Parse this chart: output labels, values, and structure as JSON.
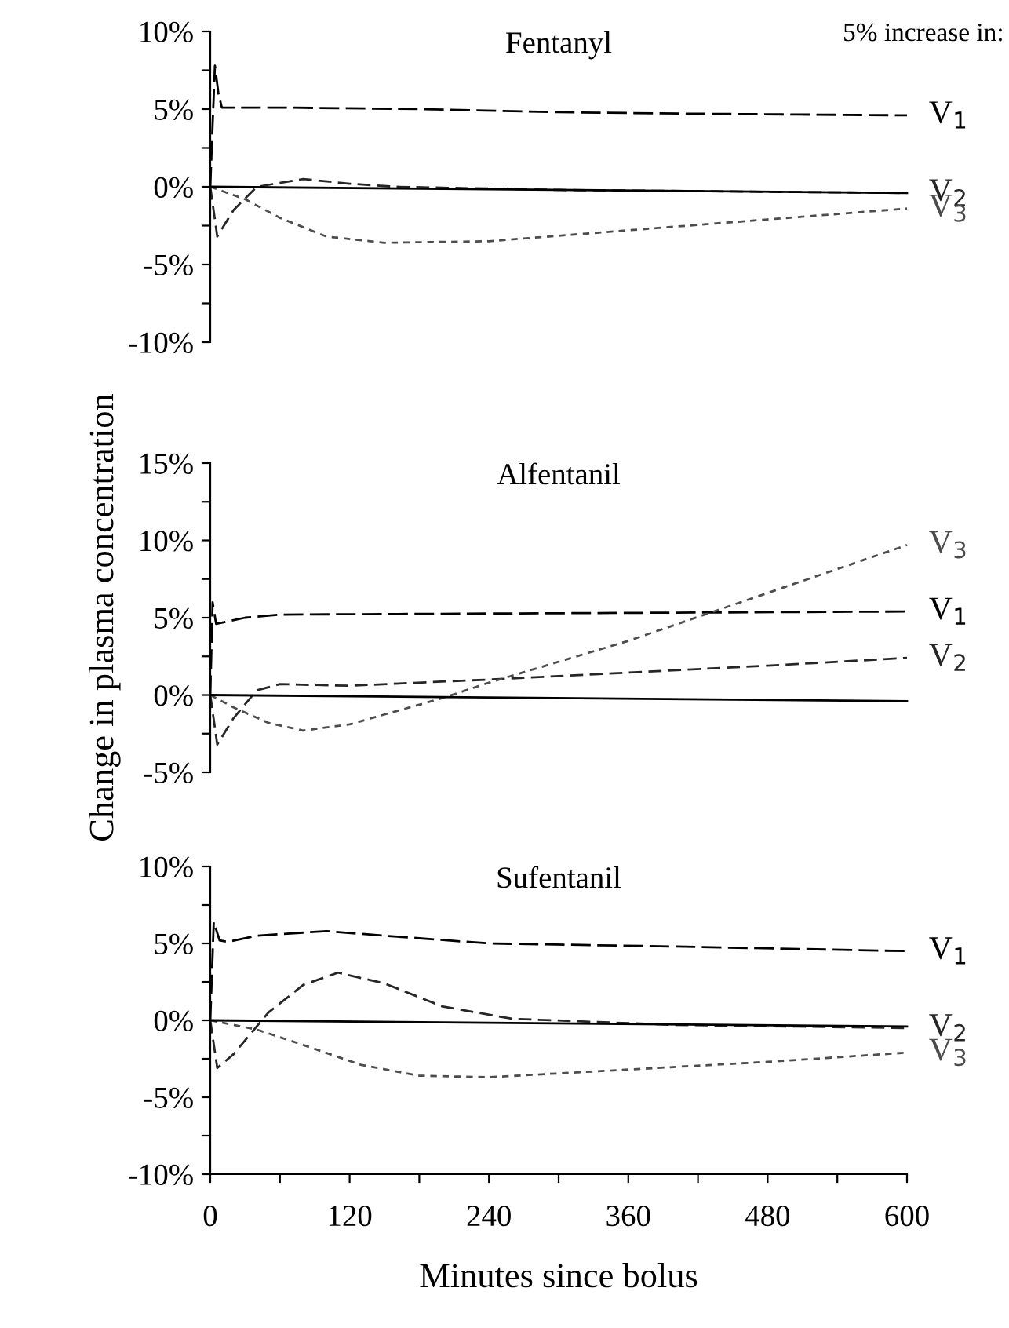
{
  "chart_data": [
    {
      "type": "line",
      "title": "Fentanyl",
      "annotations": [
        "5% increase in:"
      ],
      "xlim": [
        0,
        600
      ],
      "ylim": [
        -10,
        10
      ],
      "tick_labels": "y",
      "grid": false,
      "legend": false,
      "marker": "none",
      "yticks": [
        {
          "value": -10,
          "label": "-10%"
        },
        {
          "value": -7.5,
          "label": null
        },
        {
          "value": -5,
          "label": "-5%"
        },
        {
          "value": -2.5,
          "label": null
        },
        {
          "value": 0,
          "label": "0%"
        },
        {
          "value": 2.5,
          "label": null
        },
        {
          "value": 5,
          "label": "5%"
        },
        {
          "value": 7.5,
          "label": null
        },
        {
          "value": 10,
          "label": "10%"
        }
      ],
      "series": [
        {
          "name": "V$_{1}$",
          "color": "#000000",
          "line_style": "dashed",
          "x": [
            0,
            2,
            4,
            7,
            10,
            60,
            180,
            300,
            420,
            600
          ],
          "values": [
            0,
            4,
            7.8,
            6,
            5.1,
            5.1,
            5.0,
            4.8,
            4.7,
            4.6
          ]
        },
        {
          "name": "V$_{2}$",
          "color": "#262626",
          "line_style": "dashed",
          "x": [
            0,
            6,
            20,
            40,
            80,
            120,
            160,
            300,
            600
          ],
          "values": [
            0,
            -3.2,
            -1.5,
            0,
            0.5,
            0.2,
            0,
            -0.2,
            -0.4
          ]
        },
        {
          "name": "V$_{3}$",
          "color": "#4d4d4d",
          "line_style": "dashed",
          "x": [
            0,
            30,
            60,
            100,
            150,
            240,
            360,
            480,
            600
          ],
          "values": [
            0,
            -0.8,
            -2.0,
            -3.2,
            -3.6,
            -3.5,
            -2.8,
            -2.1,
            -1.4
          ]
        },
        {
          "color": "#000000",
          "line_style": "solid",
          "x": [
            0,
            600
          ],
          "values": [
            0,
            -0.4
          ]
        }
      ]
    },
    {
      "type": "line",
      "title": "Alfentanil",
      "ylabel": "Change in plasma concentration",
      "xlim": [
        0,
        600
      ],
      "ylim": [
        -5,
        15
      ],
      "tick_labels": "y",
      "grid": false,
      "legend": false,
      "marker": "none",
      "yticks": [
        {
          "value": -5,
          "label": "-5%"
        },
        {
          "value": -2.5,
          "label": null
        },
        {
          "value": 0,
          "label": "0%"
        },
        {
          "value": 2.5,
          "label": null
        },
        {
          "value": 5,
          "label": "5%"
        },
        {
          "value": 7.5,
          "label": null
        },
        {
          "value": 10,
          "label": "10%"
        },
        {
          "value": 12.5,
          "label": null
        },
        {
          "value": 15,
          "label": "15%"
        }
      ],
      "series": [
        {
          "name": "V$_{1}$",
          "color": "#000000",
          "line_style": "dashed",
          "x": [
            0,
            2,
            5,
            30,
            60,
            600
          ],
          "values": [
            0,
            6,
            4.6,
            5.0,
            5.2,
            5.4
          ]
        },
        {
          "name": "V$_{2}$",
          "color": "#262626",
          "line_style": "dashed",
          "x": [
            0,
            6,
            20,
            40,
            60,
            120,
            240,
            480,
            600
          ],
          "values": [
            0,
            -3.2,
            -1.5,
            0.3,
            0.7,
            0.6,
            1.0,
            1.9,
            2.4
          ]
        },
        {
          "name": "V$_{3}$",
          "color": "#4d4d4d",
          "line_style": "dashed",
          "x": [
            0,
            20,
            50,
            80,
            120,
            200,
            240,
            360,
            480,
            600
          ],
          "values": [
            0,
            -0.8,
            -1.8,
            -2.3,
            -1.9,
            -0.2,
            0.8,
            3.5,
            6.6,
            9.7
          ]
        },
        {
          "color": "#000000",
          "line_style": "solid",
          "x": [
            0,
            600
          ],
          "values": [
            0,
            -0.4
          ]
        }
      ]
    },
    {
      "type": "line",
      "title": "Sufentanil",
      "xlabel": "Minutes since bolus",
      "xlim": [
        0,
        600
      ],
      "ylim": [
        -10,
        10
      ],
      "grid": false,
      "legend": false,
      "marker": "none",
      "xticks": [
        0,
        {
          "value": 60,
          "label": null
        },
        120,
        {
          "value": 180,
          "label": null
        },
        240,
        {
          "value": 300,
          "label": null
        },
        360,
        {
          "value": 420,
          "label": null
        },
        480,
        {
          "value": 540,
          "label": null
        },
        600
      ],
      "yticks": [
        {
          "value": -10,
          "label": "-10%"
        },
        {
          "value": -7.5,
          "label": null
        },
        {
          "value": -5,
          "label": "-5%"
        },
        {
          "value": -2.5,
          "label": null
        },
        {
          "value": 0,
          "label": "0%"
        },
        {
          "value": 2.5,
          "label": null
        },
        {
          "value": 5,
          "label": "5%"
        },
        {
          "value": 7.5,
          "label": null
        },
        {
          "value": 10,
          "label": "10%"
        }
      ],
      "series": [
        {
          "name": "V$_{1}$",
          "color": "#000000",
          "line_style": "dashed",
          "x": [
            0,
            3,
            8,
            15,
            40,
            100,
            150,
            240,
            400,
            600
          ],
          "values": [
            0,
            6.4,
            5.2,
            5.1,
            5.5,
            5.8,
            5.5,
            5.0,
            4.8,
            4.5
          ]
        },
        {
          "name": "V$_{2}$",
          "color": "#262626",
          "line_style": "dashed",
          "x": [
            0,
            6,
            20,
            50,
            80,
            110,
            150,
            200,
            260,
            400,
            600
          ],
          "values": [
            0,
            -3.1,
            -2.2,
            0.5,
            2.3,
            3.1,
            2.4,
            0.9,
            0.1,
            -0.3,
            -0.5
          ]
        },
        {
          "name": "V$_{3}$",
          "color": "#4d4d4d",
          "line_style": "dashed",
          "x": [
            0,
            40,
            80,
            130,
            180,
            240,
            360,
            480,
            600
          ],
          "values": [
            0,
            -0.6,
            -1.6,
            -2.9,
            -3.6,
            -3.7,
            -3.2,
            -2.7,
            -2.1
          ]
        },
        {
          "color": "#000000",
          "line_style": "solid",
          "x": [
            0,
            600
          ],
          "values": [
            0,
            -0.4
          ]
        }
      ]
    }
  ]
}
